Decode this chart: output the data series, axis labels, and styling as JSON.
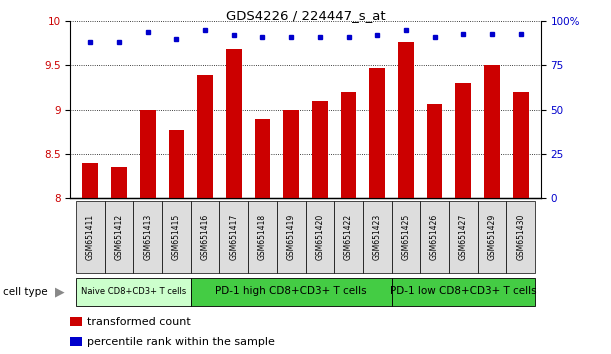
{
  "title": "GDS4226 / 224447_s_at",
  "samples": [
    "GSM651411",
    "GSM651412",
    "GSM651413",
    "GSM651415",
    "GSM651416",
    "GSM651417",
    "GSM651418",
    "GSM651419",
    "GSM651420",
    "GSM651422",
    "GSM651423",
    "GSM651425",
    "GSM651426",
    "GSM651427",
    "GSM651429",
    "GSM651430"
  ],
  "transformed_count": [
    8.4,
    8.35,
    9.0,
    8.77,
    9.39,
    9.69,
    8.9,
    9.0,
    9.1,
    9.2,
    9.47,
    9.76,
    9.06,
    9.3,
    9.51,
    9.2
  ],
  "percentile_rank": [
    88,
    88,
    94,
    90,
    95,
    92,
    91,
    91,
    91,
    91,
    92,
    95,
    91,
    93,
    93,
    93
  ],
  "bar_color": "#cc0000",
  "dot_color": "#0000cc",
  "ylim_left": [
    8.0,
    10.0
  ],
  "ylim_right": [
    0,
    100
  ],
  "yticks_left": [
    8.0,
    8.5,
    9.0,
    9.5,
    10.0
  ],
  "ytick_labels_left": [
    "8",
    "8.5",
    "9",
    "9.5",
    "10"
  ],
  "yticks_right": [
    0,
    25,
    50,
    75,
    100
  ],
  "ytick_labels_right": [
    "0",
    "25",
    "50",
    "75",
    "100%"
  ],
  "naive_group": {
    "start": 0,
    "end": 3,
    "color": "#ccffcc",
    "label": "Naive CD8+CD3+ T cells"
  },
  "pd1_high_group": {
    "start": 4,
    "end": 10,
    "color": "#44cc44",
    "label": "PD-1 high CD8+CD3+ T cells"
  },
  "pd1_low_group": {
    "start": 11,
    "end": 15,
    "color": "#44cc44",
    "label": "PD-1 low CD8+CD3+ T cells"
  },
  "cell_type_label": "cell type",
  "legend_bar_label": "transformed count",
  "legend_dot_label": "percentile rank within the sample",
  "tick_label_color_left": "#cc0000",
  "tick_label_color_right": "#0000cc",
  "sample_box_color": "#dddddd",
  "arrow_color": "#888888"
}
